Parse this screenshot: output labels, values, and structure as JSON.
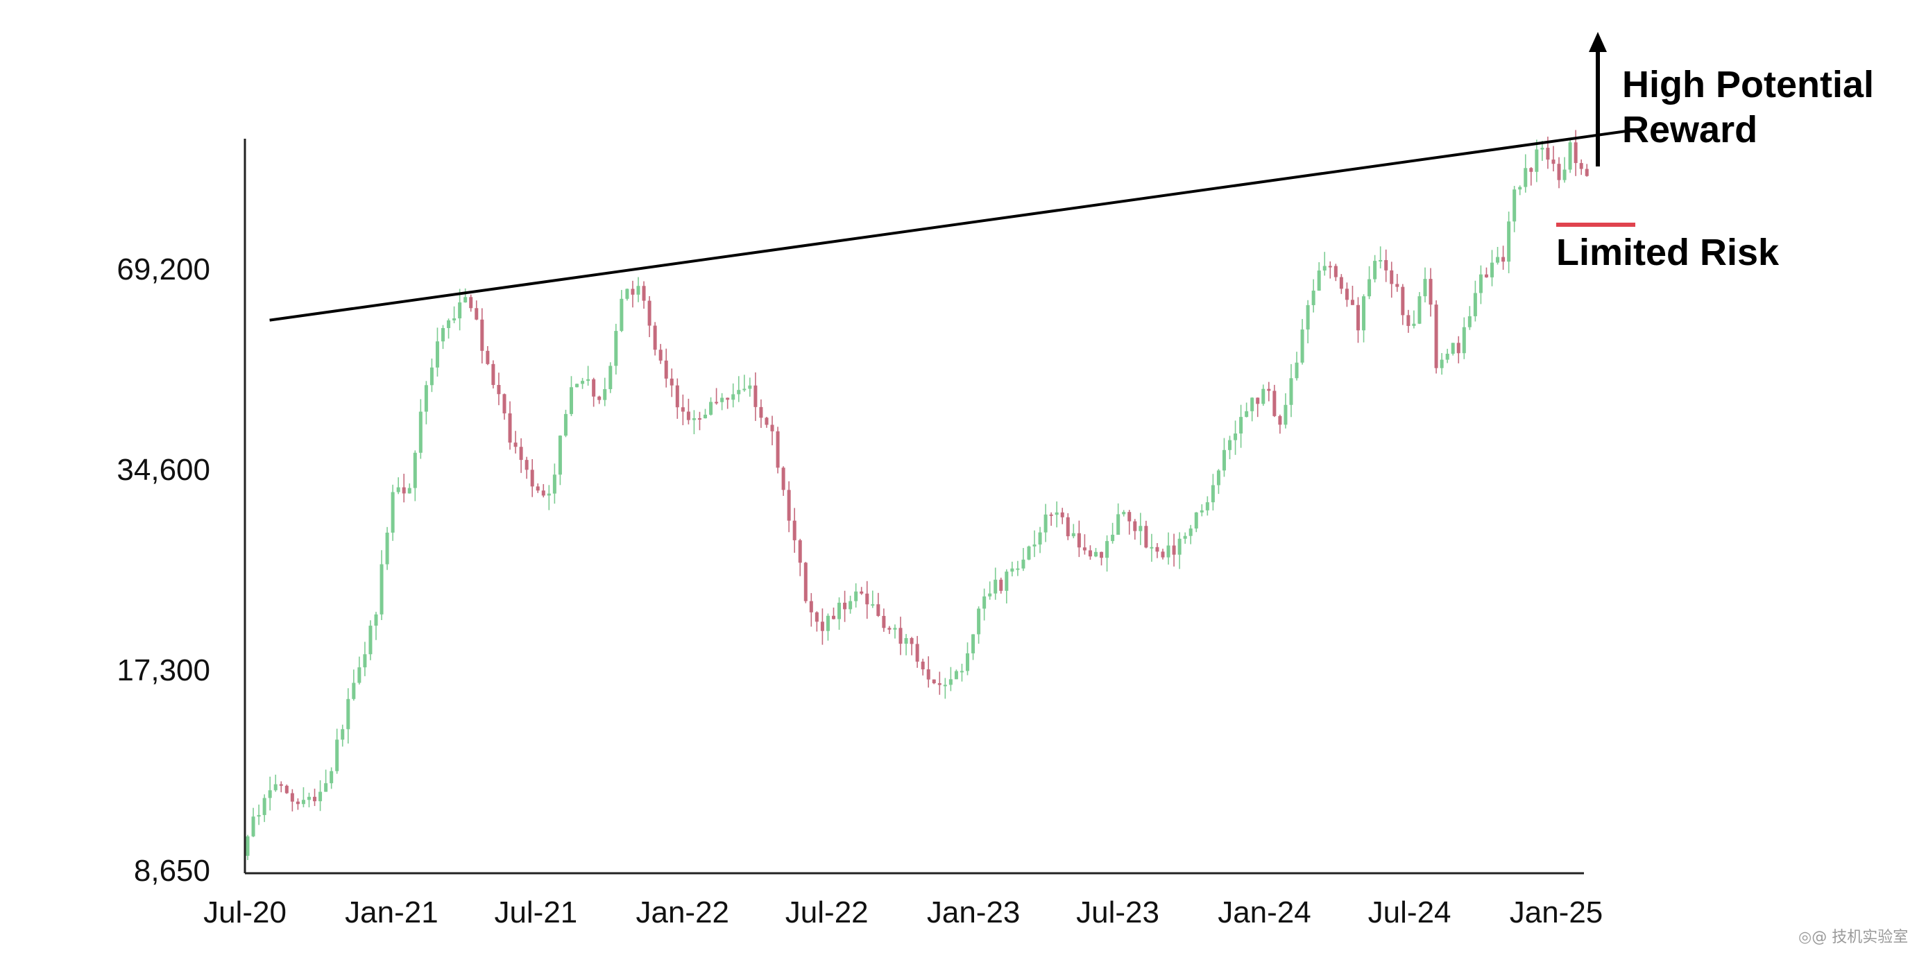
{
  "chart_data": {
    "type": "candlestick",
    "title": "",
    "xlabel": "",
    "ylabel": "",
    "y_scale": "log",
    "ylim": [
      8650,
      125000
    ],
    "yticks": [
      8650,
      17300,
      34600,
      69200
    ],
    "ytick_labels": [
      "8,650",
      "17,300",
      "34,600",
      "69,200"
    ],
    "xticks": [
      "Jul-20",
      "Jan-21",
      "Jul-21",
      "Jan-22",
      "Jul-22",
      "Jan-23",
      "Jul-23",
      "Jan-24",
      "Jul-24",
      "Jan-25"
    ],
    "xlim": [
      "2020-07-01",
      "2025-02-15"
    ],
    "grid": false,
    "colors": {
      "up": "#7ccc92",
      "down": "#c56a7d",
      "trendline": "#000000",
      "risk_line": "#e0434e",
      "axis": "#222222"
    },
    "price_path": [
      [
        "2020-07-01",
        9100
      ],
      [
        "2020-08-01",
        11700
      ],
      [
        "2020-09-15",
        10700
      ],
      [
        "2020-10-15",
        11400
      ],
      [
        "2020-11-15",
        16500
      ],
      [
        "2020-12-15",
        20500
      ],
      [
        "2021-01-08",
        34000
      ],
      [
        "2021-01-25",
        32000
      ],
      [
        "2021-02-20",
        48000
      ],
      [
        "2021-03-15",
        58000
      ],
      [
        "2021-04-14",
        62000
      ],
      [
        "2021-05-15",
        45000
      ],
      [
        "2021-06-20",
        34000
      ],
      [
        "2021-07-20",
        31000
      ],
      [
        "2021-08-20",
        47000
      ],
      [
        "2021-09-10",
        46000
      ],
      [
        "2021-09-25",
        42500
      ],
      [
        "2021-10-20",
        63000
      ],
      [
        "2021-11-10",
        66000
      ],
      [
        "2021-12-05",
        50000
      ],
      [
        "2022-01-10",
        41000
      ],
      [
        "2022-02-15",
        43000
      ],
      [
        "2022-03-30",
        46000
      ],
      [
        "2022-04-30",
        38000
      ],
      [
        "2022-05-15",
        30000
      ],
      [
        "2022-06-18",
        19800
      ],
      [
        "2022-07-15",
        21000
      ],
      [
        "2022-08-15",
        23500
      ],
      [
        "2022-09-15",
        19500
      ],
      [
        "2022-10-15",
        19500
      ],
      [
        "2022-11-09",
        16500
      ],
      [
        "2022-12-15",
        16800
      ],
      [
        "2023-01-20",
        22500
      ],
      [
        "2023-02-20",
        24000
      ],
      [
        "2023-03-15",
        26500
      ],
      [
        "2023-04-14",
        30000
      ],
      [
        "2023-05-15",
        27000
      ],
      [
        "2023-06-15",
        25500
      ],
      [
        "2023-07-10",
        30500
      ],
      [
        "2023-08-17",
        26000
      ],
      [
        "2023-09-15",
        26500
      ],
      [
        "2023-10-20",
        30000
      ],
      [
        "2023-11-15",
        37000
      ],
      [
        "2023-12-15",
        42500
      ],
      [
        "2024-01-10",
        46000
      ],
      [
        "2024-01-23",
        39500
      ],
      [
        "2024-02-15",
        52000
      ],
      [
        "2024-03-14",
        71500
      ],
      [
        "2024-04-15",
        63000
      ],
      [
        "2024-05-01",
        57500
      ],
      [
        "2024-05-20",
        70000
      ],
      [
        "2024-06-10",
        69000
      ],
      [
        "2024-07-05",
        55000
      ],
      [
        "2024-07-28",
        69000
      ],
      [
        "2024-08-05",
        50000
      ],
      [
        "2024-09-06",
        53000
      ],
      [
        "2024-09-27",
        65500
      ],
      [
        "2024-10-29",
        72000
      ],
      [
        "2024-11-13",
        90000
      ],
      [
        "2024-12-17",
        106000
      ],
      [
        "2025-01-10",
        93000
      ],
      [
        "2025-01-22",
        105000
      ],
      [
        "2025-02-10",
        97000
      ]
    ],
    "trendline": {
      "start": [
        "2020-08-01",
        58000
      ],
      "end": [
        "2025-04-10",
        112000
      ]
    },
    "annotations": {
      "reward_line1": "High Potential",
      "reward_line2": "Reward",
      "risk": "Limited Risk"
    }
  },
  "watermark": "◎@ 技机实验室"
}
